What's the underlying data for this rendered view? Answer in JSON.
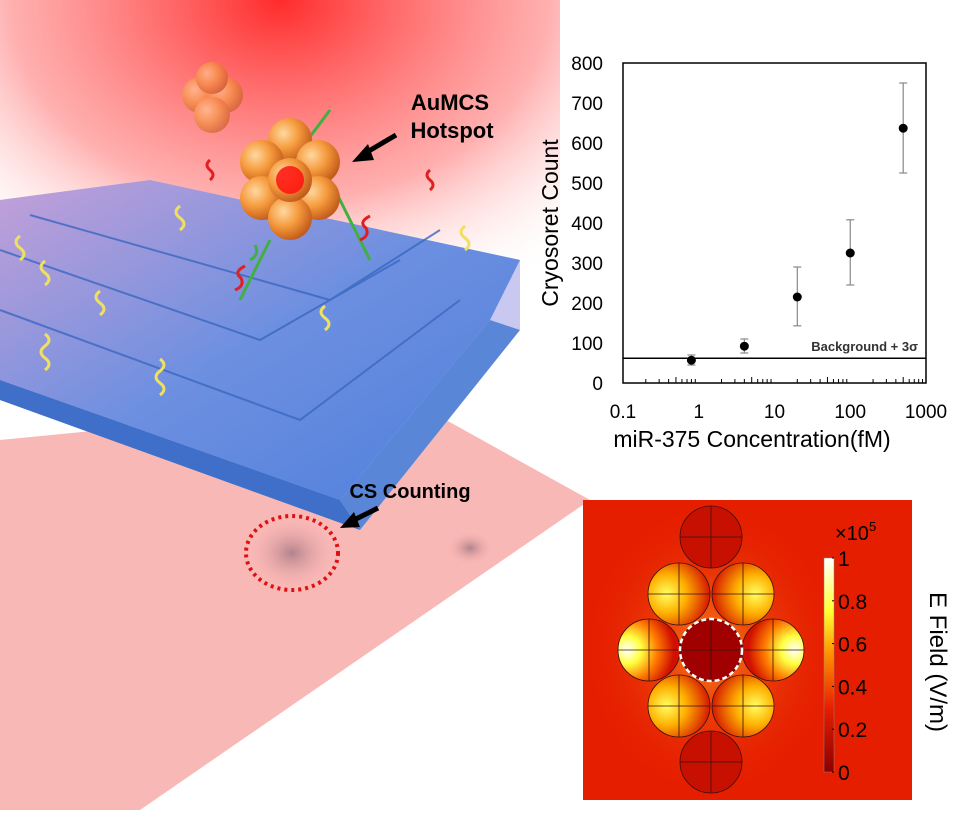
{
  "illustration": {
    "hotspot_label_line1": "AuMCS",
    "hotspot_label_line2": "Hotspot",
    "counting_label": "CS Counting"
  },
  "chart_data": {
    "type": "scatter",
    "title": "",
    "xlabel": "miR-375 Concentration(fM)",
    "ylabel": "Cryosoret Count",
    "xscale": "log",
    "xlim": [
      0.1,
      1000
    ],
    "ylim": [
      0,
      800
    ],
    "x_ticks": [
      "0.1",
      "1",
      "10",
      "100",
      "1000"
    ],
    "y_ticks": [
      "0",
      "100",
      "200",
      "300",
      "400",
      "500",
      "600",
      "700",
      "800"
    ],
    "points": [
      {
        "x": 0.8,
        "y": 57,
        "err_low": 45,
        "err_high": 70
      },
      {
        "x": 4,
        "y": 92,
        "err_low": 75,
        "err_high": 110
      },
      {
        "x": 20,
        "y": 215,
        "err_low": 143,
        "err_high": 290
      },
      {
        "x": 100,
        "y": 325,
        "err_low": 245,
        "err_high": 408
      },
      {
        "x": 500,
        "y": 637,
        "err_low": 525,
        "err_high": 750
      }
    ],
    "threshold": {
      "value": 62,
      "label": "Background + 3σ"
    },
    "grid": false
  },
  "field_map": {
    "colorbar_exponent": "×10",
    "colorbar_exponent_power": "5",
    "colorbar_ticks": [
      "0",
      "0.2",
      "0.4",
      "0.6",
      "0.8",
      "1"
    ],
    "colorbar_label": "E Field (V/m)",
    "colors": {
      "low": "#8b0000",
      "mid": "#e81e00",
      "high": "#ffff30",
      "max": "#ffffff"
    }
  }
}
